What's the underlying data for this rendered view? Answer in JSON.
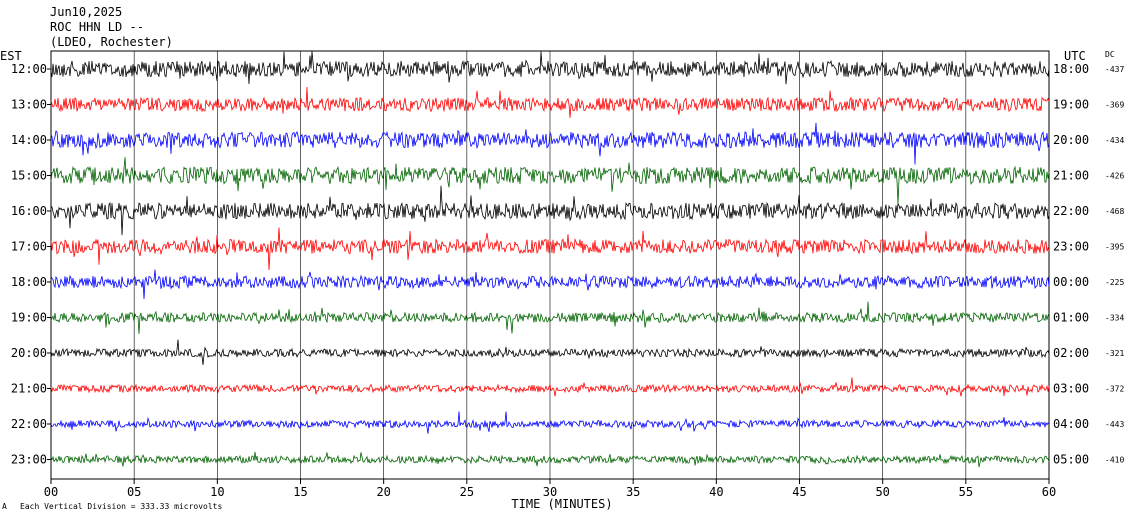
{
  "header": {
    "date": "Jun10,2025",
    "station": "ROC HHN LD --",
    "network": "(LDEO, Rochester)"
  },
  "axis_labels": {
    "left": "EST",
    "right": "UTC",
    "dc": "DC"
  },
  "footer": {
    "scale_note": "Each Vertical Division =  333.33 microvolts",
    "scale_mark": "A"
  },
  "chart_data": {
    "type": "line",
    "title": "",
    "xlabel": "TIME (MINUTES)",
    "ylabel": "",
    "xlim": [
      0,
      60
    ],
    "x_ticks": [
      "00",
      "05",
      "10",
      "15",
      "20",
      "25",
      "30",
      "35",
      "40",
      "45",
      "50",
      "55",
      "60"
    ],
    "grid": "vertical, every 5 minutes",
    "series": [
      {
        "est": "12:00",
        "utc": "18:00",
        "dc": "-437",
        "color": "#000000",
        "amp": 1.0
      },
      {
        "est": "13:00",
        "utc": "19:00",
        "dc": "-369",
        "color": "#ff0000",
        "amp": 0.85
      },
      {
        "est": "14:00",
        "utc": "20:00",
        "dc": "-434",
        "color": "#0000ff",
        "amp": 1.0
      },
      {
        "est": "15:00",
        "utc": "21:00",
        "dc": "-426",
        "color": "#006400",
        "amp": 1.05
      },
      {
        "est": "16:00",
        "utc": "22:00",
        "dc": "-468",
        "color": "#000000",
        "amp": 1.0
      },
      {
        "est": "17:00",
        "utc": "23:00",
        "dc": "-395",
        "color": "#ff0000",
        "amp": 0.9
      },
      {
        "est": "18:00",
        "utc": "00:00",
        "dc": "-225",
        "color": "#0000ff",
        "amp": 0.75
      },
      {
        "est": "19:00",
        "utc": "01:00",
        "dc": "-334",
        "color": "#006400",
        "amp": 0.6
      },
      {
        "est": "20:00",
        "utc": "02:00",
        "dc": "-321",
        "color": "#000000",
        "amp": 0.5
      },
      {
        "est": "21:00",
        "utc": "03:00",
        "dc": "-372",
        "color": "#ff0000",
        "amp": 0.45
      },
      {
        "est": "22:00",
        "utc": "04:00",
        "dc": "-443",
        "color": "#0000ff",
        "amp": 0.45
      },
      {
        "est": "23:00",
        "utc": "05:00",
        "dc": "-410",
        "color": "#006400",
        "amp": 0.45
      }
    ]
  }
}
